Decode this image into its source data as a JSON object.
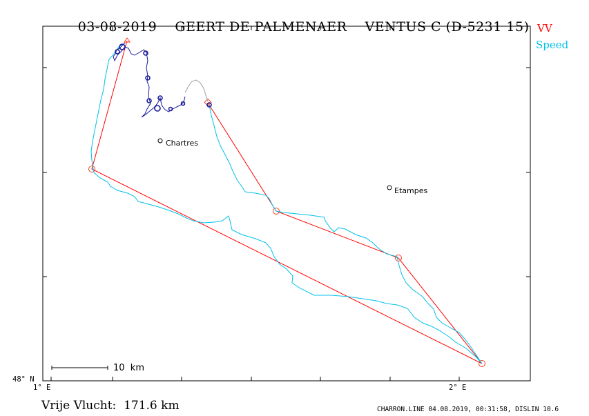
{
  "header": {
    "date": "03-08-2019",
    "pilot": "GEERT DE PALMENAER",
    "glider": "VENTUS C (D-5231 15)"
  },
  "legend": {
    "vv_label": "VV",
    "vv_color": "#ff0000",
    "speed_label": "Speed",
    "speed_color": "#00c0e8",
    "climb_color": "#1a1a9a",
    "glide_gap_color": "#a0a0a0"
  },
  "axes": {
    "lon_min_label": "1° E",
    "lon_mid_label": "2° E",
    "lat_label": "48° N"
  },
  "cities": [
    {
      "name": "Chartres"
    },
    {
      "name": "Etampes"
    }
  ],
  "scale_bar": {
    "label": "10  km"
  },
  "footer": {
    "distance_text": "Vrije Vlucht:  171.6 km",
    "program_text": "CHARRON.LINE 04.08.2019, 00:31:58, DISLIN 10.6"
  }
}
